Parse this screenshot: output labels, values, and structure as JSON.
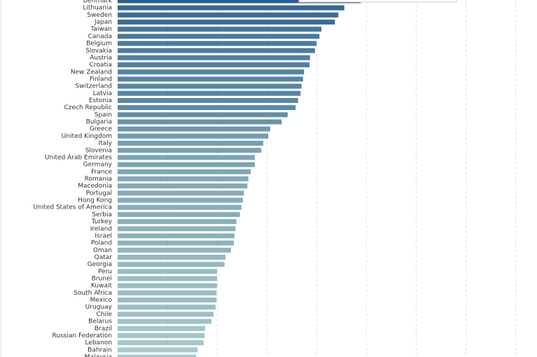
{
  "chart_data": {
    "type": "bar",
    "orientation": "horizontal",
    "categories": [
      "Denmark",
      "Lithuania",
      "Sweden",
      "Japan",
      "Taiwan",
      "Canada",
      "Belgium",
      "Slovakia",
      "Austria",
      "Croatia",
      "New Zealand",
      "Finland",
      "Switzerland",
      "Latvia",
      "Estonia",
      "Czech Republic",
      "Spain",
      "Bulgaria",
      "Greece",
      "United Kingdom",
      "Italy",
      "Slovenia",
      "United Arab Emirates",
      "Germany",
      "France",
      "Romania",
      "Macedonia",
      "Portugal",
      "Hong Kong",
      "United States of America",
      "Serbia",
      "Turkey",
      "Ireland",
      "Israel",
      "Poland",
      "Oman",
      "Qatar",
      "Georgia",
      "Peru",
      "Brunei",
      "Kuwait",
      "South Africa",
      "Mexico",
      "Uruguay",
      "Chile",
      "Belarus",
      "Brazil",
      "Russian Federation",
      "Lebanon",
      "Bahrain",
      "Malaysia"
    ],
    "values": [
      48.9,
      45.6,
      44.4,
      43.7,
      41.0,
      40.6,
      40.0,
      39.7,
      38.7,
      38.6,
      37.5,
      37.3,
      37.0,
      36.8,
      36.3,
      35.8,
      34.2,
      33.0,
      30.7,
      30.3,
      29.3,
      28.9,
      27.6,
      27.6,
      26.8,
      26.3,
      26.1,
      25.4,
      25.2,
      24.9,
      24.6,
      23.9,
      23.7,
      23.5,
      23.4,
      22.8,
      21.7,
      21.5,
      20.0,
      20.0,
      20.0,
      19.9,
      19.9,
      19.7,
      19.3,
      18.9,
      17.6,
      17.5,
      17.3,
      16.1,
      15.8
    ],
    "color_scale": [
      "#a9cbcc",
      "#2a5d8c"
    ],
    "xlim": [
      0,
      84.5
    ],
    "gridlines": [
      10,
      20,
      30,
      40,
      50,
      60,
      70,
      80
    ],
    "grid": true
  }
}
